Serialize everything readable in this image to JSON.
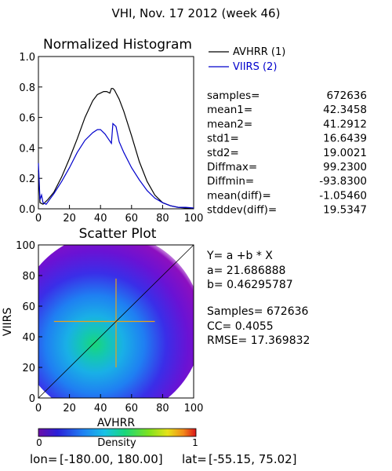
{
  "header": {
    "title": "VHI,  Nov. 17 2012 (week 46)"
  },
  "colors": {
    "series1": "#000000",
    "series2": "#0000cc",
    "text": "#000000",
    "identity_line": "#000000"
  },
  "chart_data": [
    {
      "type": "line",
      "title": "Normalized Histogram",
      "xlim": [
        0,
        100
      ],
      "ylim": [
        0,
        1.0
      ],
      "x_ticks": [
        "0",
        "20",
        "40",
        "60",
        "80",
        "100"
      ],
      "y_ticks": [
        "0.0",
        "0.2",
        "0.4",
        "0.6",
        "0.8",
        "1.0"
      ],
      "legend": [
        "AVHRR (1)",
        "VIIRS (2)"
      ],
      "legend_placement": "outside-right",
      "series": [
        {
          "name": "AVHRR (1)",
          "color": "#000000",
          "x": [
            0,
            1,
            3,
            6,
            10,
            15,
            20,
            25,
            30,
            35,
            38,
            40,
            42,
            44,
            46,
            47,
            48,
            49,
            50,
            52,
            55,
            60,
            65,
            70,
            75,
            80,
            85,
            90,
            95,
            100
          ],
          "y": [
            0.25,
            0.04,
            0.03,
            0.06,
            0.11,
            0.21,
            0.33,
            0.46,
            0.6,
            0.71,
            0.75,
            0.76,
            0.77,
            0.77,
            0.76,
            0.79,
            0.79,
            0.78,
            0.76,
            0.72,
            0.64,
            0.48,
            0.31,
            0.18,
            0.09,
            0.04,
            0.02,
            0.01,
            0.005,
            0.0
          ]
        },
        {
          "name": "VIIRS (2)",
          "color": "#0000cc",
          "x": [
            0,
            1,
            2,
            3,
            5,
            10,
            15,
            20,
            25,
            30,
            35,
            38,
            40,
            43,
            45,
            47,
            48,
            49,
            50,
            52,
            55,
            60,
            65,
            70,
            75,
            80,
            85,
            90,
            95,
            100
          ],
          "y": [
            0.3,
            0.06,
            0.09,
            0.04,
            0.03,
            0.1,
            0.18,
            0.27,
            0.37,
            0.45,
            0.5,
            0.52,
            0.52,
            0.49,
            0.46,
            0.43,
            0.56,
            0.55,
            0.54,
            0.44,
            0.37,
            0.27,
            0.19,
            0.12,
            0.07,
            0.04,
            0.02,
            0.01,
            0.01,
            0.005
          ]
        }
      ]
    },
    {
      "type": "heatmap",
      "title": "Scatter Plot",
      "xlabel": "AVHRR",
      "ylabel": "VIIRS",
      "xlim": [
        0,
        100
      ],
      "ylim": [
        0,
        100
      ],
      "x_ticks": [
        "0",
        "20",
        "40",
        "60",
        "80",
        "100"
      ],
      "y_ticks": [
        "0",
        "20",
        "40",
        "60",
        "80",
        "100"
      ],
      "regression": {
        "a": 21.686888,
        "b": 0.46295787
      },
      "density_center": {
        "x": 42,
        "y": 40
      },
      "colorbar": {
        "label": "Density",
        "min": "0",
        "max": "1"
      }
    }
  ],
  "stats": [
    {
      "label": "samples=",
      "value": "672636"
    },
    {
      "label": "mean1=",
      "value": "42.3458"
    },
    {
      "label": "mean2=",
      "value": "41.2912"
    },
    {
      "label": "std1=",
      "value": "16.6439"
    },
    {
      "label": "std2=",
      "value": "19.0021"
    },
    {
      "label": "Diffmax=",
      "value": "99.2300"
    },
    {
      "label": "Diffmin=",
      "value": "-93.8300"
    },
    {
      "label": "mean(diff)=",
      "value": "-1.05460"
    },
    {
      "label": "stddev(diff)=",
      "value": "19.5347"
    }
  ],
  "regression_text": {
    "equation": "Y= a +b * X",
    "a_line": "a= 21.686888",
    "b_line": "b= 0.46295787",
    "samples_line": "Samples= 672636",
    "cc_line": "CC=  0.4055",
    "rmse_line": "RMSE= 17.369832"
  },
  "footer": {
    "lon_label": "lon=",
    "lon_range": "[-180.00, 180.00]",
    "lat_label": "lat=",
    "lat_range": "[-55.15, 75.02]"
  }
}
